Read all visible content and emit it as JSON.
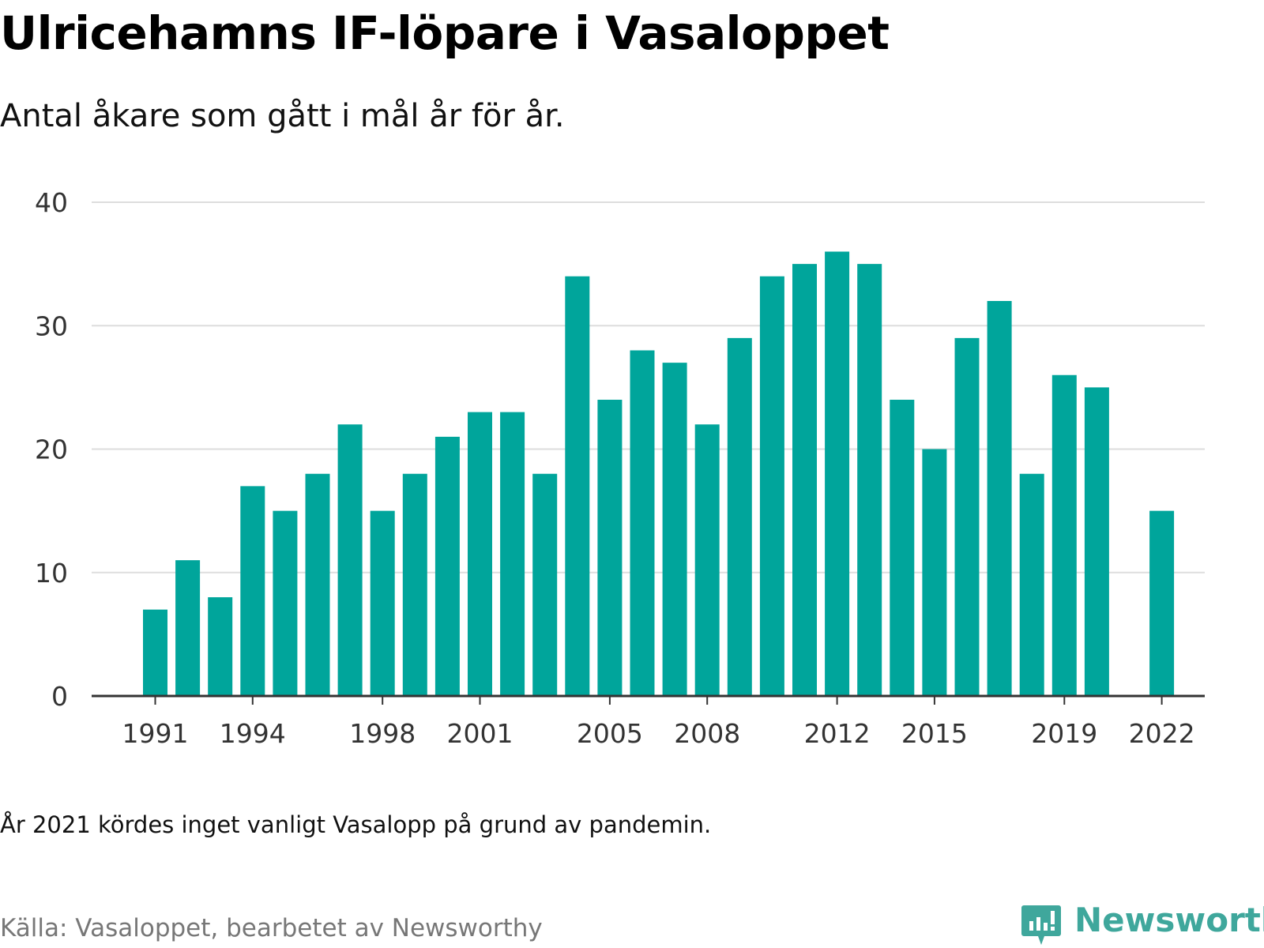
{
  "title": "Ulricehamns IF-löpare i Vasaloppet",
  "subtitle": "Antal åkare som gått i mål år för år.",
  "note": "År 2021 kördes inget vanligt Vasalopp på grund av pandemin.",
  "source": "Källa: Vasaloppet, bearbetet av Newsworthy",
  "brand": {
    "name": "Newsworthy",
    "icon": "newsworthy-logo-icon",
    "color": "#3fa79c"
  },
  "colors": {
    "bar": "#00a59b",
    "grid": "#dddddd",
    "axis": "#333333"
  },
  "chart_data": {
    "type": "bar",
    "title": "Ulricehamns IF-löpare i Vasaloppet",
    "subtitle": "Antal åkare som gått i mål år för år.",
    "categories": [
      1991,
      1992,
      1993,
      1994,
      1995,
      1996,
      1997,
      1998,
      1999,
      2000,
      2001,
      2002,
      2003,
      2004,
      2005,
      2006,
      2007,
      2008,
      2009,
      2010,
      2011,
      2012,
      2013,
      2014,
      2015,
      2016,
      2017,
      2018,
      2019,
      2020,
      2021,
      2022
    ],
    "values": [
      7,
      11,
      8,
      17,
      15,
      18,
      22,
      15,
      18,
      21,
      23,
      23,
      18,
      34,
      24,
      28,
      27,
      22,
      29,
      34,
      35,
      36,
      35,
      24,
      20,
      29,
      32,
      18,
      26,
      25,
      null,
      15
    ],
    "x_tick_labels": [
      "1991",
      "1994",
      "1998",
      "2001",
      "2005",
      "2008",
      "2012",
      "2015",
      "2019",
      "2022"
    ],
    "y_ticks": [
      0,
      10,
      20,
      30,
      40
    ],
    "ylim": [
      0,
      40
    ],
    "grid": true,
    "legend": "none",
    "xlabel": "",
    "ylabel": ""
  }
}
